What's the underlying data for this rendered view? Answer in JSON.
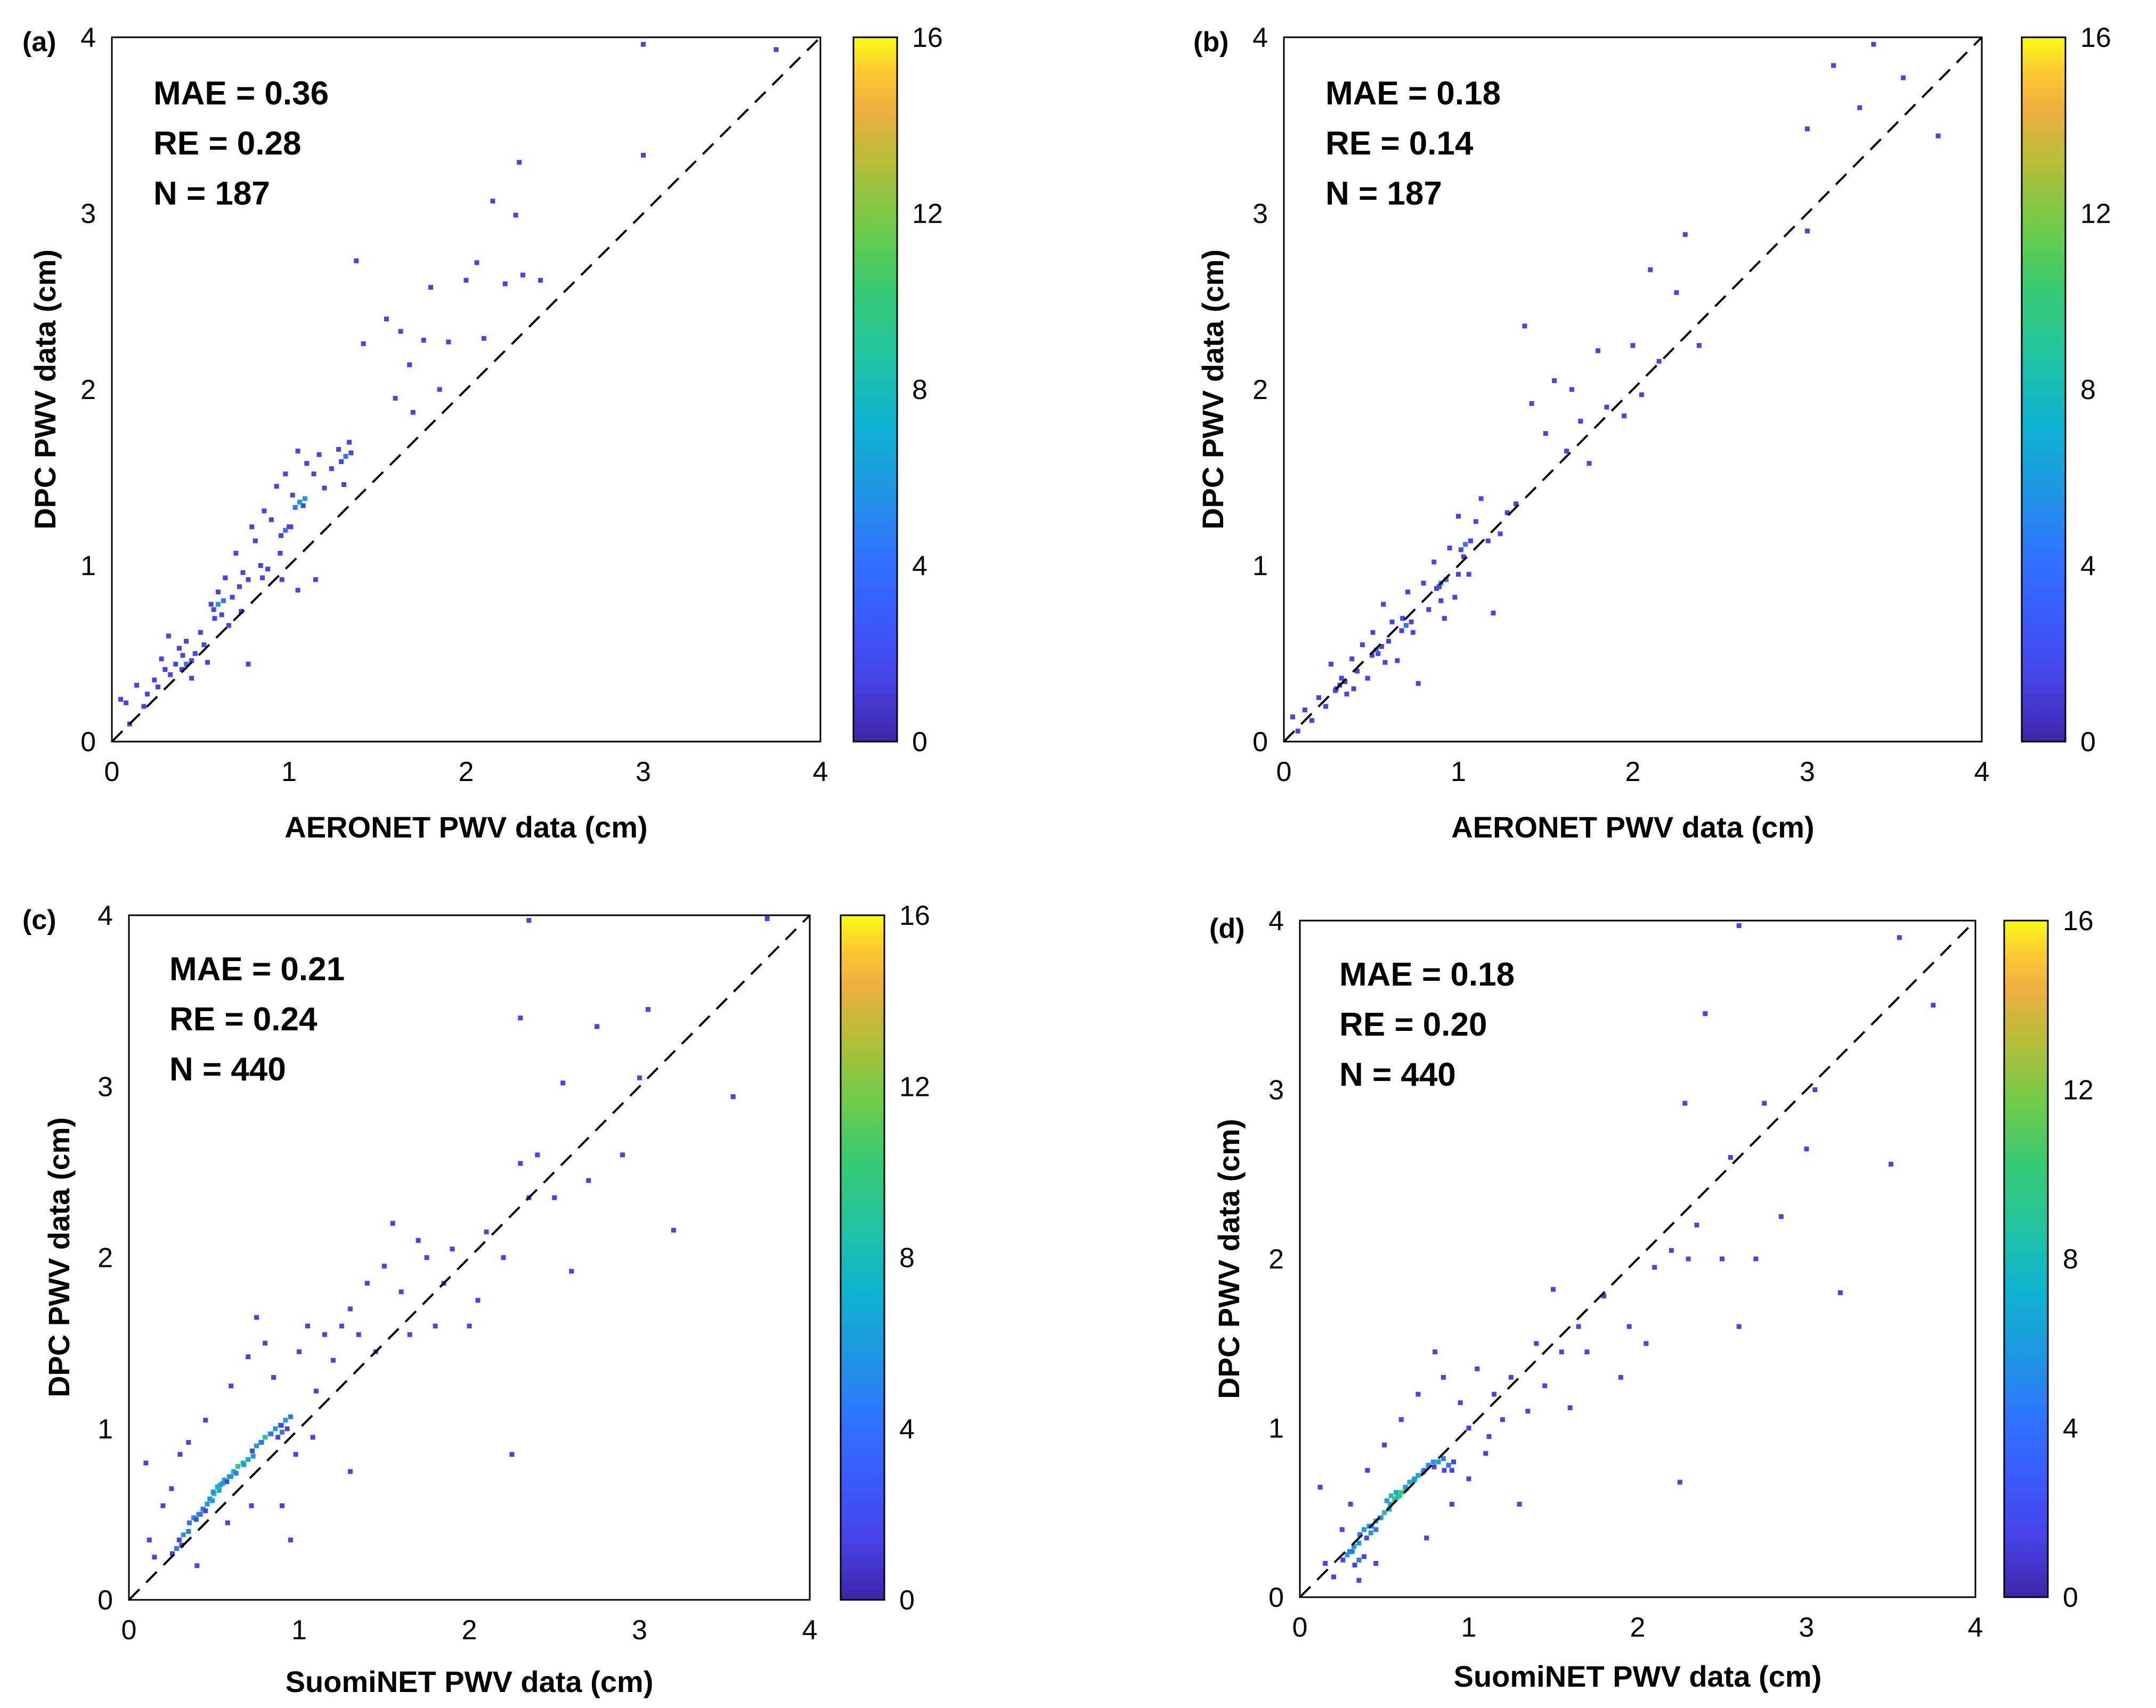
{
  "colormap": [
    "#3e26a8",
    "#4744e8",
    "#2f76fd",
    "#1e98e3",
    "#0db2cf",
    "#22c49f",
    "#35ca72",
    "#6fcb49",
    "#b4bd39",
    "#f0ae3f",
    "#fbc932",
    "#f9fb15"
  ],
  "chart_data": [
    {
      "type": "scatter",
      "panel_label": "(a)",
      "xlabel": "AERONET PWV data (cm)",
      "ylabel": "DPC PWV data (cm)",
      "xlim": [
        0,
        4
      ],
      "ylim": [
        0,
        4
      ],
      "xticks": [
        0,
        1,
        2,
        3,
        4
      ],
      "yticks": [
        0,
        1,
        2,
        3,
        4
      ],
      "stats": [
        "MAE = 0.36",
        "RE = 0.28",
        "N = 187"
      ],
      "colorbar": {
        "range": [
          0,
          16
        ],
        "ticks": [
          0,
          4,
          8,
          12,
          16
        ]
      },
      "reference_line": "1:1 dashed",
      "points": [
        [
          0.05,
          0.24
        ],
        [
          0.08,
          0.22
        ],
        [
          0.1,
          0.1
        ],
        [
          0.14,
          0.32
        ],
        [
          0.18,
          0.2
        ],
        [
          0.2,
          0.27
        ],
        [
          0.24,
          0.35
        ],
        [
          0.26,
          0.31
        ],
        [
          0.28,
          0.47
        ],
        [
          0.3,
          0.41
        ],
        [
          0.32,
          0.6
        ],
        [
          0.33,
          0.38
        ],
        [
          0.36,
          0.44
        ],
        [
          0.38,
          0.53
        ],
        [
          0.4,
          0.49
        ],
        [
          0.42,
          0.57
        ],
        [
          0.45,
          0.36
        ],
        [
          0.47,
          0.5
        ],
        [
          0.5,
          0.62
        ],
        [
          0.52,
          0.55
        ],
        [
          0.54,
          0.45
        ],
        [
          0.56,
          0.78
        ],
        [
          0.58,
          0.7
        ],
        [
          0.6,
          0.85
        ],
        [
          0.62,
          0.72
        ],
        [
          0.64,
          0.93
        ],
        [
          0.66,
          0.66
        ],
        [
          0.68,
          0.82
        ],
        [
          0.7,
          1.07
        ],
        [
          0.72,
          0.88
        ],
        [
          0.74,
          0.96
        ],
        [
          0.77,
          0.92
        ],
        [
          0.79,
          1.22
        ],
        [
          0.81,
          1.14
        ],
        [
          0.84,
          1.0
        ],
        [
          0.86,
          1.31
        ],
        [
          0.88,
          0.98
        ],
        [
          0.9,
          1.26
        ],
        [
          0.93,
          1.45
        ],
        [
          0.95,
          1.07
        ],
        [
          0.98,
          1.52
        ],
        [
          1.0,
          1.22
        ],
        [
          1.02,
          1.4
        ],
        [
          1.05,
          1.65
        ],
        [
          1.08,
          1.34
        ],
        [
          1.1,
          1.58
        ],
        [
          1.14,
          1.52
        ],
        [
          1.17,
          1.63
        ],
        [
          1.2,
          1.44
        ],
        [
          1.24,
          1.55
        ],
        [
          1.28,
          1.66
        ],
        [
          1.31,
          1.46
        ],
        [
          1.34,
          1.7
        ],
        [
          1.38,
          2.73
        ],
        [
          1.42,
          2.26
        ],
        [
          1.55,
          2.4
        ],
        [
          1.6,
          1.95
        ],
        [
          1.63,
          2.33
        ],
        [
          1.68,
          2.14
        ],
        [
          1.7,
          1.87
        ],
        [
          1.76,
          2.28
        ],
        [
          1.8,
          2.58
        ],
        [
          1.85,
          2.0
        ],
        [
          1.9,
          2.27
        ],
        [
          2.0,
          2.62
        ],
        [
          2.06,
          2.72
        ],
        [
          2.1,
          2.29
        ],
        [
          2.15,
          3.07
        ],
        [
          2.22,
          2.6
        ],
        [
          2.28,
          2.99
        ],
        [
          2.3,
          3.29
        ],
        [
          2.32,
          2.65
        ],
        [
          2.42,
          2.62
        ],
        [
          3.0,
          3.33
        ],
        [
          3.0,
          3.96
        ],
        [
          3.75,
          3.93
        ],
        [
          0.73,
          0.74
        ],
        [
          0.85,
          0.93
        ],
        [
          0.96,
          0.92
        ],
        [
          1.15,
          0.92
        ],
        [
          0.77,
          0.44
        ],
        [
          1.05,
          0.86
        ]
      ],
      "counts": [
        [
          0.6,
          0.78,
          4
        ],
        [
          1.06,
          1.36,
          5
        ],
        [
          0.98,
          1.2,
          3
        ],
        [
          0.42,
          0.44,
          3
        ],
        [
          1.32,
          1.62,
          3
        ]
      ]
    },
    {
      "type": "scatter",
      "panel_label": "(b)",
      "xlabel": "AERONET PWV data (cm)",
      "ylabel": "DPC PWV data (cm)",
      "xlim": [
        0,
        4
      ],
      "ylim": [
        0,
        4
      ],
      "xticks": [
        0,
        1,
        2,
        3,
        4
      ],
      "yticks": [
        0,
        1,
        2,
        3,
        4
      ],
      "stats": [
        "MAE = 0.18",
        "RE = 0.14",
        "N = 187"
      ],
      "colorbar": {
        "range": [
          0,
          16
        ],
        "ticks": [
          0,
          4,
          8,
          12,
          16
        ]
      },
      "reference_line": "1:1 dashed",
      "points": [
        [
          0.05,
          0.14
        ],
        [
          0.08,
          0.06
        ],
        [
          0.12,
          0.18
        ],
        [
          0.16,
          0.12
        ],
        [
          0.2,
          0.25
        ],
        [
          0.24,
          0.2
        ],
        [
          0.27,
          0.44
        ],
        [
          0.3,
          0.3
        ],
        [
          0.33,
          0.36
        ],
        [
          0.36,
          0.27
        ],
        [
          0.39,
          0.47
        ],
        [
          0.42,
          0.4
        ],
        [
          0.45,
          0.55
        ],
        [
          0.48,
          0.36
        ],
        [
          0.51,
          0.62
        ],
        [
          0.54,
          0.5
        ],
        [
          0.57,
          0.78
        ],
        [
          0.6,
          0.57
        ],
        [
          0.62,
          0.68
        ],
        [
          0.65,
          0.46
        ],
        [
          0.68,
          0.7
        ],
        [
          0.71,
          0.85
        ],
        [
          0.74,
          0.62
        ],
        [
          0.77,
          0.33
        ],
        [
          0.8,
          0.9
        ],
        [
          0.83,
          0.75
        ],
        [
          0.86,
          1.02
        ],
        [
          0.89,
          0.88
        ],
        [
          0.92,
          0.7
        ],
        [
          0.95,
          1.1
        ],
        [
          0.98,
          0.82
        ],
        [
          1.0,
          1.28
        ],
        [
          1.03,
          1.05
        ],
        [
          1.06,
          0.95
        ],
        [
          1.1,
          1.25
        ],
        [
          1.13,
          1.38
        ],
        [
          1.17,
          1.14
        ],
        [
          1.2,
          0.73
        ],
        [
          1.24,
          1.18
        ],
        [
          1.28,
          1.3
        ],
        [
          1.33,
          1.35
        ],
        [
          1.38,
          2.36
        ],
        [
          1.42,
          1.92
        ],
        [
          1.5,
          1.75
        ],
        [
          1.55,
          2.05
        ],
        [
          1.62,
          1.65
        ],
        [
          1.65,
          2.0
        ],
        [
          1.7,
          1.82
        ],
        [
          1.75,
          1.58
        ],
        [
          1.8,
          2.22
        ],
        [
          1.85,
          1.9
        ],
        [
          1.95,
          1.85
        ],
        [
          2.0,
          2.25
        ],
        [
          2.05,
          1.97
        ],
        [
          2.1,
          2.68
        ],
        [
          2.15,
          2.16
        ],
        [
          2.25,
          2.55
        ],
        [
          2.3,
          2.88
        ],
        [
          2.38,
          2.25
        ],
        [
          3.0,
          2.9
        ],
        [
          3.0,
          3.48
        ],
        [
          3.15,
          3.84
        ],
        [
          3.3,
          3.6
        ],
        [
          3.38,
          3.96
        ],
        [
          3.55,
          3.77
        ],
        [
          3.75,
          3.44
        ],
        [
          0.9,
          0.8
        ],
        [
          1.0,
          0.95
        ],
        [
          0.4,
          0.3
        ],
        [
          0.58,
          0.45
        ]
      ],
      "counts": [
        [
          0.53,
          0.52,
          3
        ],
        [
          0.9,
          0.9,
          4
        ],
        [
          1.04,
          1.12,
          3
        ],
        [
          0.7,
          0.66,
          3
        ],
        [
          0.32,
          0.32,
          2
        ]
      ]
    },
    {
      "type": "scatter",
      "panel_label": "(c)",
      "xlabel": "SuomiNET PWV data (cm)",
      "ylabel": "DPC PWV data (cm)",
      "xlim": [
        0,
        4
      ],
      "ylim": [
        0,
        4
      ],
      "xticks": [
        0,
        1,
        2,
        3,
        4
      ],
      "yticks": [
        0,
        1,
        2,
        3,
        4
      ],
      "stats": [
        "MAE = 0.21",
        "RE = 0.24",
        "N = 440"
      ],
      "colorbar": {
        "range": [
          0,
          16
        ],
        "ticks": [
          0,
          4,
          8,
          12,
          16
        ]
      },
      "reference_line": "1:1 dashed",
      "points": [
        [
          0.1,
          0.8
        ],
        [
          0.12,
          0.35
        ],
        [
          0.15,
          0.25
        ],
        [
          0.2,
          0.55
        ],
        [
          0.25,
          0.65
        ],
        [
          0.3,
          0.85
        ],
        [
          0.35,
          0.92
        ],
        [
          0.4,
          0.2
        ],
        [
          0.45,
          1.05
        ],
        [
          0.6,
          1.25
        ],
        [
          0.7,
          1.42
        ],
        [
          0.75,
          1.65
        ],
        [
          0.8,
          1.5
        ],
        [
          0.85,
          1.3
        ],
        [
          0.9,
          0.55
        ],
        [
          0.95,
          0.35
        ],
        [
          1.0,
          1.45
        ],
        [
          1.05,
          1.6
        ],
        [
          1.1,
          1.22
        ],
        [
          1.15,
          1.55
        ],
        [
          1.2,
          1.4
        ],
        [
          1.25,
          1.6
        ],
        [
          1.3,
          1.7
        ],
        [
          1.35,
          1.55
        ],
        [
          1.4,
          1.85
        ],
        [
          1.45,
          1.45
        ],
        [
          1.5,
          1.95
        ],
        [
          1.55,
          2.2
        ],
        [
          1.6,
          1.8
        ],
        [
          1.65,
          1.55
        ],
        [
          1.7,
          2.1
        ],
        [
          1.75,
          2.0
        ],
        [
          1.8,
          1.6
        ],
        [
          1.85,
          1.85
        ],
        [
          1.9,
          2.05
        ],
        [
          2.0,
          1.6
        ],
        [
          2.05,
          1.75
        ],
        [
          2.1,
          2.15
        ],
        [
          2.2,
          2.0
        ],
        [
          2.25,
          0.85
        ],
        [
          2.3,
          2.55
        ],
        [
          2.3,
          3.4
        ],
        [
          2.35,
          2.35
        ],
        [
          2.4,
          2.6
        ],
        [
          2.5,
          2.35
        ],
        [
          2.55,
          3.02
        ],
        [
          2.6,
          1.92
        ],
        [
          2.7,
          2.45
        ],
        [
          2.75,
          3.35
        ],
        [
          2.9,
          2.6
        ],
        [
          3.0,
          3.05
        ],
        [
          3.05,
          3.45
        ],
        [
          3.2,
          2.16
        ],
        [
          3.55,
          2.94
        ],
        [
          3.75,
          3.98
        ],
        [
          2.35,
          3.97
        ],
        [
          1.3,
          0.75
        ],
        [
          1.08,
          0.95
        ],
        [
          0.98,
          0.85
        ],
        [
          0.72,
          0.55
        ],
        [
          0.58,
          0.45
        ]
      ],
      "counts": [
        [
          0.5,
          0.62,
          7
        ],
        [
          0.56,
          0.7,
          6
        ],
        [
          0.64,
          0.78,
          8
        ],
        [
          0.7,
          0.82,
          6
        ],
        [
          0.8,
          0.95,
          7
        ],
        [
          0.86,
          1.0,
          5
        ],
        [
          0.46,
          0.56,
          5
        ],
        [
          0.38,
          0.48,
          5
        ],
        [
          0.32,
          0.38,
          4
        ],
        [
          0.28,
          0.3,
          3
        ],
        [
          0.6,
          0.72,
          4
        ],
        [
          0.92,
          1.05,
          4
        ],
        [
          0.75,
          0.9,
          4
        ],
        [
          0.42,
          0.5,
          3
        ],
        [
          0.52,
          0.66,
          6
        ],
        [
          0.9,
          0.98,
          3
        ]
      ]
    },
    {
      "type": "scatter",
      "panel_label": "(d)",
      "xlabel": "SuomiNET PWV data (cm)",
      "ylabel": "DPC PWV data (cm)",
      "xlim": [
        0,
        4
      ],
      "ylim": [
        0,
        4
      ],
      "xticks": [
        0,
        1,
        2,
        3,
        4
      ],
      "yticks": [
        0,
        1,
        2,
        3,
        4
      ],
      "stats": [
        "MAE = 0.18",
        "RE = 0.20",
        "N = 440"
      ],
      "colorbar": {
        "range": [
          0,
          16
        ],
        "ticks": [
          0,
          4,
          8,
          12,
          16
        ]
      },
      "reference_line": "1:1 dashed",
      "points": [
        [
          0.12,
          0.65
        ],
        [
          0.15,
          0.2
        ],
        [
          0.2,
          0.12
        ],
        [
          0.25,
          0.4
        ],
        [
          0.3,
          0.55
        ],
        [
          0.35,
          0.1
        ],
        [
          0.4,
          0.75
        ],
        [
          0.45,
          0.2
        ],
        [
          0.5,
          0.9
        ],
        [
          0.6,
          1.05
        ],
        [
          0.7,
          1.2
        ],
        [
          0.75,
          0.35
        ],
        [
          0.8,
          1.45
        ],
        [
          0.85,
          1.3
        ],
        [
          0.9,
          0.55
        ],
        [
          0.95,
          1.15
        ],
        [
          1.0,
          1.0
        ],
        [
          1.05,
          1.35
        ],
        [
          1.1,
          0.85
        ],
        [
          1.15,
          1.2
        ],
        [
          1.2,
          1.05
        ],
        [
          1.25,
          1.3
        ],
        [
          1.3,
          0.55
        ],
        [
          1.35,
          1.1
        ],
        [
          1.4,
          1.5
        ],
        [
          1.45,
          1.25
        ],
        [
          1.5,
          1.82
        ],
        [
          1.55,
          1.45
        ],
        [
          1.6,
          1.12
        ],
        [
          1.65,
          1.6
        ],
        [
          1.7,
          1.45
        ],
        [
          1.8,
          1.78
        ],
        [
          1.9,
          1.3
        ],
        [
          1.95,
          1.6
        ],
        [
          2.05,
          1.5
        ],
        [
          2.1,
          1.95
        ],
        [
          2.2,
          2.05
        ],
        [
          2.25,
          0.68
        ],
        [
          2.28,
          2.92
        ],
        [
          2.3,
          2.0
        ],
        [
          2.35,
          2.2
        ],
        [
          2.4,
          3.45
        ],
        [
          2.5,
          2.0
        ],
        [
          2.55,
          2.6
        ],
        [
          2.6,
          1.6
        ],
        [
          2.7,
          2.0
        ],
        [
          2.75,
          2.92
        ],
        [
          2.85,
          2.25
        ],
        [
          3.0,
          2.65
        ],
        [
          3.05,
          3.0
        ],
        [
          3.2,
          1.8
        ],
        [
          3.5,
          2.56
        ],
        [
          3.55,
          3.9
        ],
        [
          3.75,
          3.5
        ],
        [
          2.6,
          3.97
        ],
        [
          1.0,
          0.7
        ],
        [
          0.9,
          0.75
        ],
        [
          1.12,
          0.95
        ]
      ],
      "counts": [
        [
          0.5,
          0.5,
          7
        ],
        [
          0.56,
          0.58,
          8
        ],
        [
          0.6,
          0.62,
          9
        ],
        [
          0.45,
          0.45,
          6
        ],
        [
          0.38,
          0.4,
          5
        ],
        [
          0.32,
          0.3,
          5
        ],
        [
          0.28,
          0.25,
          4
        ],
        [
          0.7,
          0.72,
          6
        ],
        [
          0.76,
          0.78,
          5
        ],
        [
          0.82,
          0.8,
          4
        ],
        [
          0.65,
          0.68,
          6
        ],
        [
          0.42,
          0.38,
          4
        ],
        [
          0.35,
          0.22,
          3
        ],
        [
          0.88,
          0.78,
          3
        ],
        [
          0.54,
          0.6,
          7
        ]
      ]
    }
  ]
}
